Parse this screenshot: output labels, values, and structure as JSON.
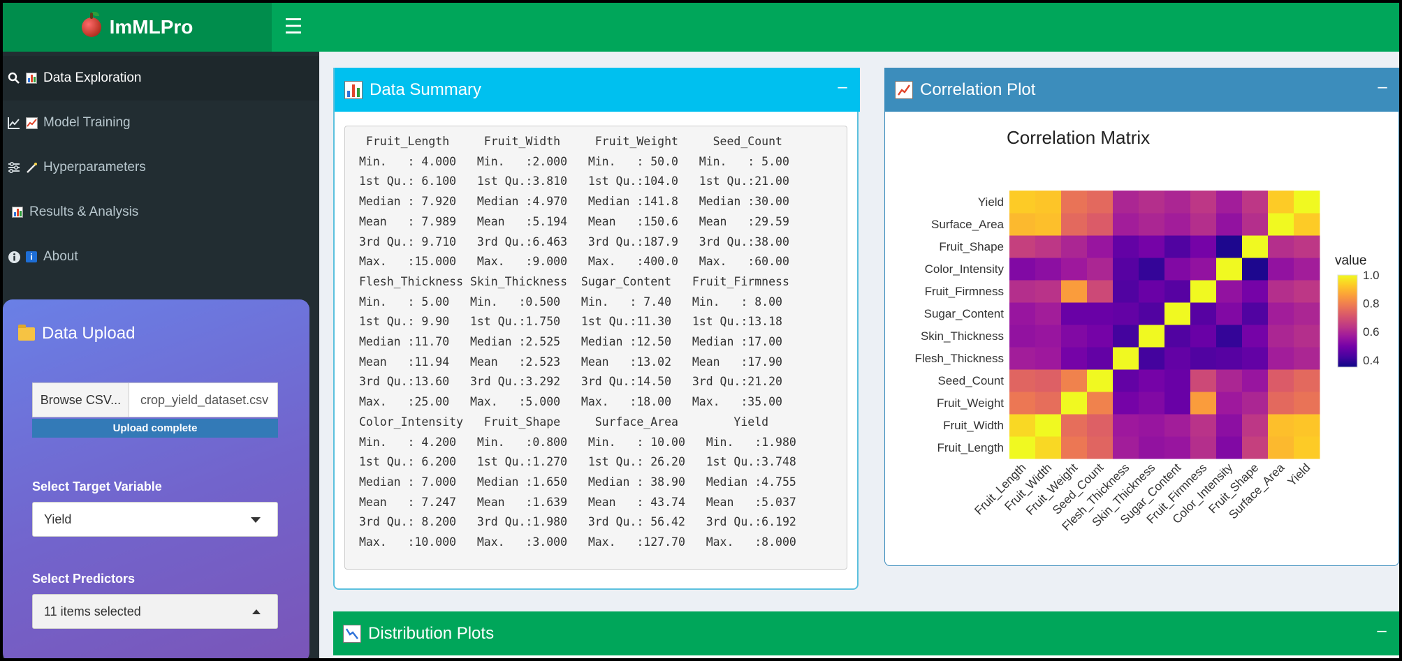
{
  "app": {
    "title": "ImMLPro"
  },
  "sidebar": {
    "items": [
      {
        "label": "Data Exploration",
        "icon": "search-icon",
        "icon2": "bar-chart-icon"
      },
      {
        "label": "Model Training",
        "icon": "line-chart-icon",
        "icon2": "trend-chart-icon"
      },
      {
        "label": "Hyperparameters",
        "icon": "sliders-icon",
        "icon2": "magic-wand-icon"
      },
      {
        "label": "Results & Analysis",
        "icon": "",
        "icon2": "bar-chart-icon"
      },
      {
        "label": "About",
        "icon": "info-circle-icon",
        "icon2": "info-square-icon"
      }
    ],
    "upload": {
      "title": "Data Upload",
      "browse_label": "Browse CSV...",
      "file_name": "crop_yield_dataset.csv",
      "progress_text": "Upload complete",
      "target_label": "Select Target Variable",
      "target_value": "Yield",
      "predictors_label": "Select Predictors",
      "predictors_value": "11 items selected"
    }
  },
  "summary": {
    "title": "Data Summary",
    "text": " Fruit_Length     Fruit_Width     Fruit_Weight     Seed_Count  \nMin.   : 4.000   Min.   :2.000   Min.   : 50.0   Min.   : 5.00  \n1st Qu.: 6.100   1st Qu.:3.810   1st Qu.:104.0   1st Qu.:21.00  \nMedian : 7.920   Median :4.970   Median :141.8   Median :30.00  \nMean   : 7.989   Mean   :5.194   Mean   :150.6   Mean   :29.59  \n3rd Qu.: 9.710   3rd Qu.:6.463   3rd Qu.:187.9   3rd Qu.:38.00  \nMax.   :15.000   Max.   :9.000   Max.   :400.0   Max.   :60.00  \nFlesh_Thickness Skin_Thickness  Sugar_Content   Fruit_Firmness \nMin.   : 5.00   Min.   :0.500   Min.   : 7.40   Min.   : 8.00  \n1st Qu.: 9.90   1st Qu.:1.750   1st Qu.:11.30   1st Qu.:13.18  \nMedian :11.70   Median :2.525   Median :12.50   Median :17.00  \nMean   :11.94   Mean   :2.523   Mean   :13.02   Mean   :17.90  \n3rd Qu.:13.60   3rd Qu.:3.292   3rd Qu.:14.50   3rd Qu.:21.20  \nMax.   :25.00   Max.   :5.000   Max.   :18.00   Max.   :35.00  \nColor_Intensity   Fruit_Shape     Surface_Area        Yield     \nMin.   : 4.200   Min.   :0.800   Min.   : 10.00   Min.   :1.980  \n1st Qu.: 6.200   1st Qu.:1.270   1st Qu.: 26.20   1st Qu.:3.748  \nMedian : 7.000   Median :1.650   Median : 38.90   Median :4.755  \nMean   : 7.247   Mean   :1.639   Mean   : 43.74   Mean   :5.037  \n3rd Qu.: 8.200   3rd Qu.:1.980   3rd Qu.: 56.42   3rd Qu.:6.192  \nMax.   :10.000   Max.   :3.000   Max.   :127.70   Max.   :8.000  "
  },
  "correlation": {
    "title": "Correlation Plot"
  },
  "distribution": {
    "title": "Distribution Plots"
  },
  "chart_data": {
    "type": "heatmap",
    "title": "Correlation Matrix",
    "x": [
      "Fruit_Length",
      "Fruit_Width",
      "Fruit_Weight",
      "Seed_Count",
      "Flesh_Thickness",
      "Skin_Thickness",
      "Sugar_Content",
      "Fruit_Firmness",
      "Color_Intensity",
      "Fruit_Shape",
      "Surface_Area",
      "Yield"
    ],
    "y": [
      "Fruit_Length",
      "Fruit_Width",
      "Fruit_Weight",
      "Seed_Count",
      "Flesh_Thickness",
      "Skin_Thickness",
      "Sugar_Content",
      "Fruit_Firmness",
      "Color_Intensity",
      "Fruit_Shape",
      "Surface_Area",
      "Yield"
    ],
    "values": [
      [
        1.0,
        0.95,
        0.78,
        0.74,
        0.58,
        0.55,
        0.56,
        0.62,
        0.52,
        0.66,
        0.9,
        0.93
      ],
      [
        0.95,
        1.0,
        0.76,
        0.73,
        0.57,
        0.56,
        0.58,
        0.63,
        0.54,
        0.64,
        0.91,
        0.92
      ],
      [
        0.78,
        0.76,
        1.0,
        0.8,
        0.5,
        0.52,
        0.48,
        0.85,
        0.57,
        0.6,
        0.75,
        0.77
      ],
      [
        0.74,
        0.73,
        0.8,
        1.0,
        0.47,
        0.5,
        0.48,
        0.68,
        0.6,
        0.56,
        0.72,
        0.75
      ],
      [
        0.58,
        0.57,
        0.5,
        0.47,
        1.0,
        0.42,
        0.47,
        0.44,
        0.45,
        0.47,
        0.58,
        0.6
      ],
      [
        0.55,
        0.56,
        0.52,
        0.5,
        0.42,
        1.0,
        0.44,
        0.48,
        0.4,
        0.5,
        0.6,
        0.62
      ],
      [
        0.56,
        0.58,
        0.48,
        0.48,
        0.47,
        0.44,
        1.0,
        0.45,
        0.52,
        0.44,
        0.58,
        0.6
      ],
      [
        0.62,
        0.63,
        0.85,
        0.68,
        0.44,
        0.48,
        0.45,
        1.0,
        0.55,
        0.5,
        0.62,
        0.64
      ],
      [
        0.52,
        0.54,
        0.57,
        0.6,
        0.45,
        0.4,
        0.52,
        0.55,
        1.0,
        0.37,
        0.55,
        0.58
      ],
      [
        0.66,
        0.64,
        0.6,
        0.56,
        0.47,
        0.5,
        0.44,
        0.5,
        0.37,
        1.0,
        0.62,
        0.64
      ],
      [
        0.9,
        0.91,
        0.75,
        0.72,
        0.58,
        0.6,
        0.58,
        0.62,
        0.55,
        0.62,
        1.0,
        0.93
      ],
      [
        0.93,
        0.92,
        0.77,
        0.75,
        0.6,
        0.62,
        0.6,
        0.64,
        0.58,
        0.64,
        0.93,
        1.0
      ]
    ],
    "colorbar": {
      "title": "value",
      "ticks": [
        0.4,
        0.6,
        0.8,
        1.0
      ],
      "range": [
        0.35,
        1.0
      ]
    },
    "colorscale": [
      "#0d0887",
      "#46039f",
      "#7201a8",
      "#9c179e",
      "#bd3786",
      "#d8576b",
      "#ed7953",
      "#fb9f3a",
      "#fdca26",
      "#f0f921"
    ]
  }
}
